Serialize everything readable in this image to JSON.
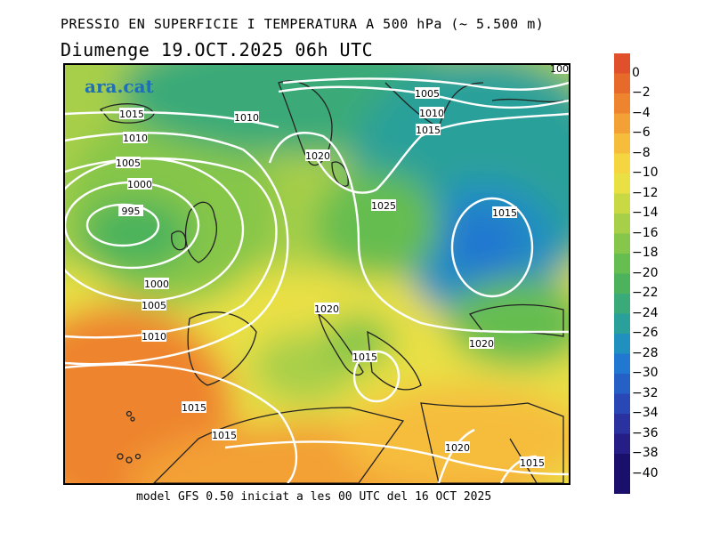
{
  "header": {
    "title_line1": "PRESSIO EN SUPERFICIE I TEMPERATURA A 500 hPa (~ 5.500 m)",
    "title_line2": "Diumenge  19.OCT.2025 06h UTC"
  },
  "footer": {
    "text": "model GFS 0.50 iniciat a les 00 UTC del 16 OCT 2025"
  },
  "map": {
    "logo": "ara.cat",
    "isobar_labels": [
      "995",
      "1000",
      "1005",
      "1010",
      "1015",
      "1010",
      "1005",
      "1010",
      "1015",
      "1005",
      "1010",
      "1015",
      "1020",
      "1025",
      "1015",
      "1020",
      "1015",
      "1020",
      "1015",
      "1000",
      "1005",
      "1010",
      "1015",
      "1015",
      "1020"
    ]
  },
  "colorbar": {
    "labels": [
      "0",
      "−2",
      "−4",
      "−6",
      "−8",
      "−10",
      "−12",
      "−14",
      "−16",
      "−18",
      "−20",
      "−22",
      "−24",
      "−26",
      "−28",
      "−30",
      "−32",
      "−34",
      "−36",
      "−38",
      "−40"
    ],
    "colors": [
      "#e0502a",
      "#e76a2a",
      "#ee842e",
      "#f3a034",
      "#f6bd3c",
      "#f5d540",
      "#e9e044",
      "#c9d944",
      "#a8cf48",
      "#86c64a",
      "#66bd50",
      "#4cb35c",
      "#3aaa78",
      "#2aa09a",
      "#2090bf",
      "#2178d0",
      "#2560c7",
      "#2948b5",
      "#2a32a0",
      "#241e86",
      "#1a0f6a"
    ]
  }
}
